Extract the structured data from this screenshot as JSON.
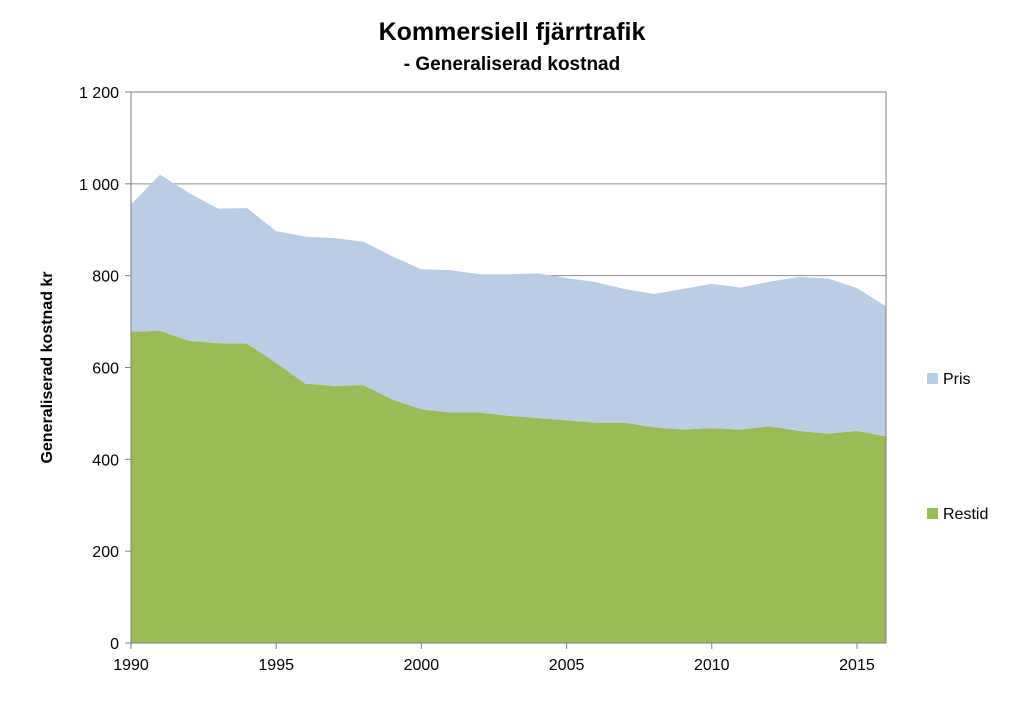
{
  "chart_data": {
    "type": "area",
    "title": "Kommersiell fjärrtrafik",
    "subtitle": "- Generaliserad kostnad",
    "xlabel": "",
    "ylabel": "Generaliserad kostnad kr",
    "stacked": true,
    "xlim": [
      1990,
      2016
    ],
    "ylim": [
      0,
      1200
    ],
    "yticks": [
      0,
      200,
      400,
      600,
      800,
      1000,
      1200
    ],
    "ytick_labels": [
      "0",
      "200",
      "400",
      "600",
      "800",
      "1 000",
      "1 200"
    ],
    "xticks": [
      1990,
      1995,
      2000,
      2005,
      2010,
      2015
    ],
    "xtick_labels": [
      "1990",
      "1995",
      "2000",
      "2005",
      "2010",
      "2015"
    ],
    "grid": "horizontal",
    "legend_position": "right",
    "x": [
      1990,
      1991,
      1992,
      1993,
      1994,
      1995,
      1996,
      1997,
      1998,
      1999,
      2000,
      2001,
      2002,
      2003,
      2004,
      2005,
      2006,
      2007,
      2008,
      2009,
      2010,
      2011,
      2012,
      2013,
      2014,
      2015,
      2016
    ],
    "series": [
      {
        "name": "Restid",
        "color": "#9bbb59",
        "values": [
          678,
          680,
          658,
          653,
          652,
          610,
          565,
          560,
          562,
          530,
          509,
          502,
          502,
          495,
          490,
          485,
          480,
          480,
          470,
          465,
          468,
          465,
          472,
          462,
          456,
          462,
          450
        ]
      },
      {
        "name": "Pris",
        "color": "#b9cde5",
        "values": [
          277,
          340,
          322,
          293,
          295,
          287,
          320,
          322,
          312,
          312,
          305,
          310,
          301,
          308,
          315,
          310,
          306,
          291,
          290,
          306,
          314,
          309,
          315,
          335,
          338,
          311,
          283
        ]
      }
    ]
  }
}
